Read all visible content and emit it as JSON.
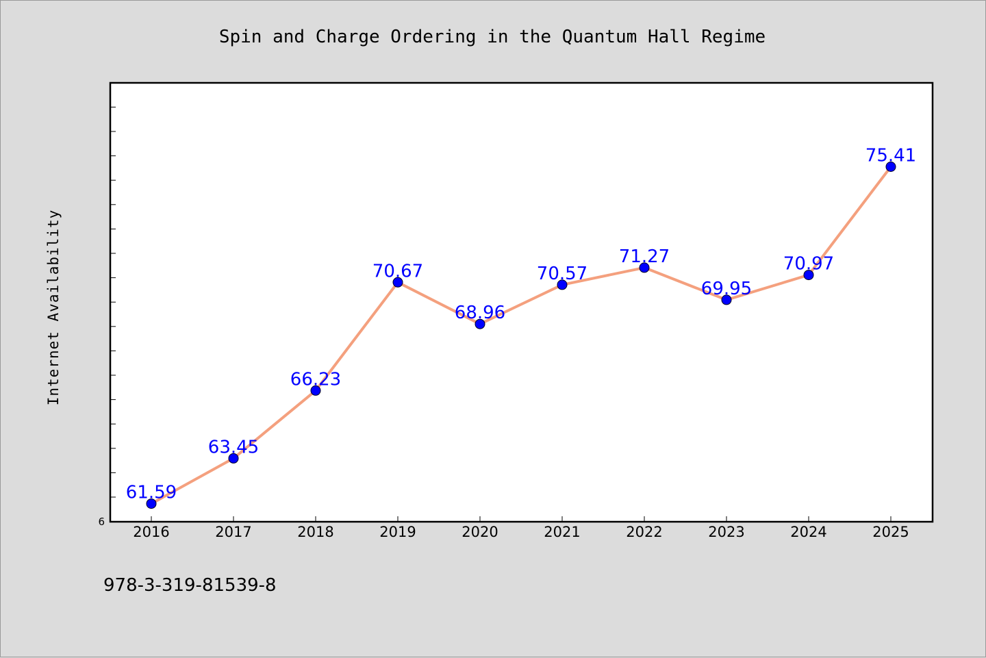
{
  "footer": {
    "isbn": "978-3-319-81539-8"
  },
  "colors": {
    "background": "#dcdcdc",
    "plot_background": "#ffffff",
    "line": "#f4a07e",
    "marker": "#0000ff",
    "data_label": "#0000ff"
  },
  "chart_data": {
    "type": "line",
    "title": "Spin and Charge Ordering in the Quantum Hall Regime",
    "xlabel": "",
    "ylabel": "Internet Availability",
    "categories": [
      "2016",
      "2017",
      "2018",
      "2019",
      "2020",
      "2021",
      "2022",
      "2023",
      "2024",
      "2025"
    ],
    "series": [
      {
        "values": [
          61.59,
          63.45,
          66.23,
          70.67,
          68.96,
          70.57,
          71.27,
          69.95,
          70.97,
          75.41
        ]
      }
    ],
    "data_labels": [
      "61.59",
      "63.45",
      "66.23",
      "70.67",
      "68.96",
      "70.57",
      "71.27",
      "69.95",
      "70.97",
      "75.41"
    ],
    "ylim": [
      60.85,
      78.85
    ],
    "y_tick_labels": [
      "6"
    ],
    "grid": false,
    "legend": "none"
  }
}
